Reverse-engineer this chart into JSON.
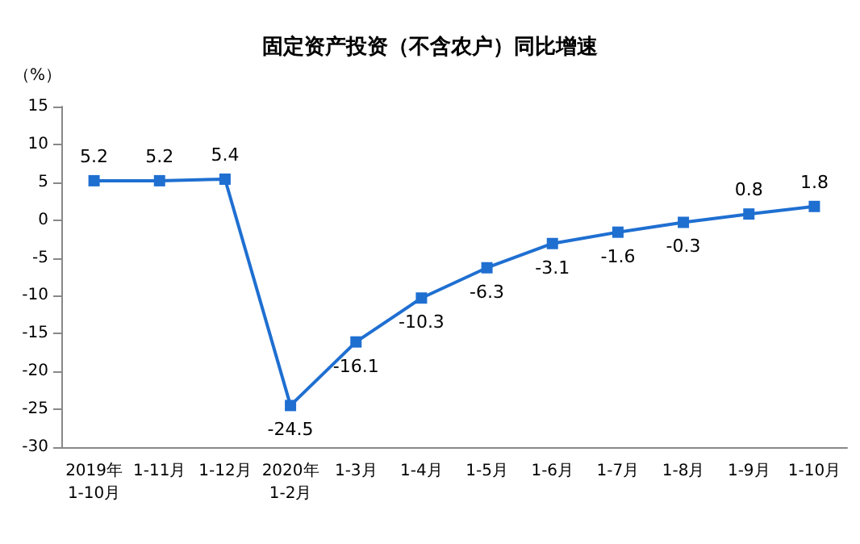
{
  "chart_data": {
    "type": "line",
    "title": "固定资产投资（不含农户）同比增速",
    "ylabel": "（%）",
    "categories": [
      "2019年\n1-10月",
      "1-11月",
      "1-12月",
      "2020年\n1-2月",
      "1-3月",
      "1-4月",
      "1-5月",
      "1-6月",
      "1-7月",
      "1-8月",
      "1-9月",
      "1-10月"
    ],
    "series": [
      {
        "color": "#1f6fd1",
        "values": [
          5.2,
          5.2,
          5.4,
          -24.5,
          -16.1,
          -10.3,
          -6.3,
          -3.1,
          -1.6,
          -0.3,
          0.8,
          1.8
        ]
      }
    ],
    "ylim": [
      -30,
      15
    ],
    "yticks": [
      -30,
      -25,
      -20,
      -15,
      -10,
      -5,
      0,
      5,
      10,
      15
    ],
    "grid": false,
    "legend": false,
    "marker": "square",
    "line_style": "solid",
    "data_labels": true
  }
}
